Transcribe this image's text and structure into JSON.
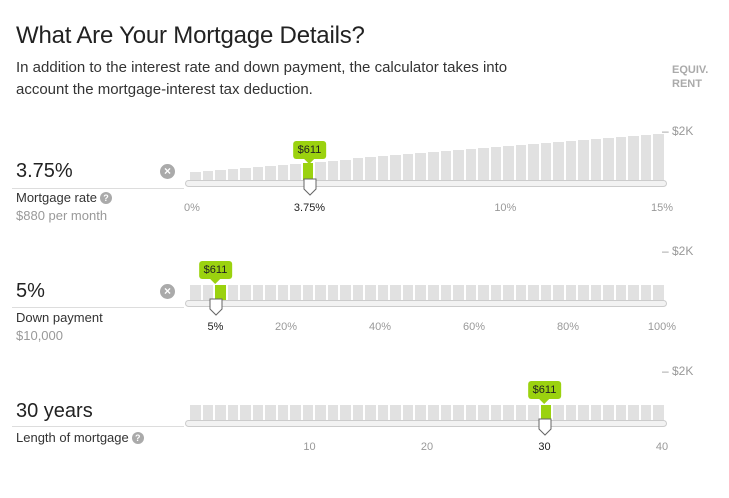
{
  "header": {
    "title": "What Are Your Mortgage Details?",
    "intro": "In addition to the interest rate and down payment, the calculator takes into account the mortgage-interest tax deduction.",
    "equiv_line1": "EQUIV.",
    "equiv_line2": "RENT"
  },
  "colors": {
    "accent": "#9bd20f",
    "bar": "#e1e1e1"
  },
  "sliders": [
    {
      "id": "rate",
      "value": "3.75%",
      "label": "Mortgage rate",
      "sub": "$880 per month",
      "axis_label": "– $2K",
      "badge": "$611",
      "ticks": [
        "0%",
        "3.75%",
        "10%",
        "15%"
      ],
      "tick_values": [
        0,
        3.75,
        10,
        15
      ],
      "min": 0,
      "max": 15,
      "current": 3.75,
      "selected_tick": 1,
      "has_clear": true,
      "bar_count": 38,
      "bar_levels_start": 0.18,
      "bar_levels_end": 1.0
    },
    {
      "id": "down",
      "value": "5%",
      "label": "Down payment",
      "sub": "$10,000",
      "axis_label": "– $2K",
      "badge": "$611",
      "ticks": [
        "5%",
        "20%",
        "40%",
        "60%",
        "80%",
        "100%"
      ],
      "tick_values": [
        5,
        20,
        40,
        60,
        80,
        100
      ],
      "min": 0,
      "max": 100,
      "current": 5,
      "selected_tick": 0,
      "has_clear": true,
      "bar_count": 38,
      "bar_levels_start": 0.32,
      "bar_levels_end": 0.32
    },
    {
      "id": "term",
      "value": "30 years",
      "label": "Length of mortgage",
      "sub": "",
      "axis_label": "– $2K",
      "badge": "$611",
      "ticks": [
        "10",
        "20",
        "30",
        "40"
      ],
      "tick_values": [
        10,
        20,
        30,
        40
      ],
      "min": 0,
      "max": 40,
      "current": 30,
      "selected_tick": 2,
      "has_clear": false,
      "bar_count": 38,
      "bar_levels_start": 0.32,
      "bar_levels_end": 0.32
    }
  ]
}
